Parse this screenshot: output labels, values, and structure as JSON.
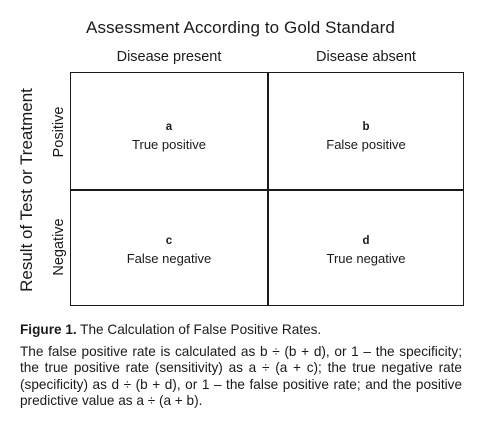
{
  "title": "Assessment According to Gold Standard",
  "columns": [
    "Disease present",
    "Disease absent"
  ],
  "row_axis_label": "Result of Test or Treatment",
  "rows": [
    "Positive",
    "Negative"
  ],
  "cells": [
    {
      "letter": "a",
      "label": "True positive"
    },
    {
      "letter": "b",
      "label": "False positive"
    },
    {
      "letter": "c",
      "label": "False negative"
    },
    {
      "letter": "d",
      "label": "True negative"
    }
  ],
  "caption": {
    "figure_label": "Figure 1.",
    "figure_title": " The Calculation of False Positive Rates.",
    "body": "The false positive rate is calculated as b ÷ (b + d), or 1 – the specificity; the true positive rate (sensitivity) as a ÷ (a + c); the true negative rate (specificity) as d ÷ (b + d), or 1 – the false positive rate; and the positive predictive value as a ÷ (a + b)."
  }
}
